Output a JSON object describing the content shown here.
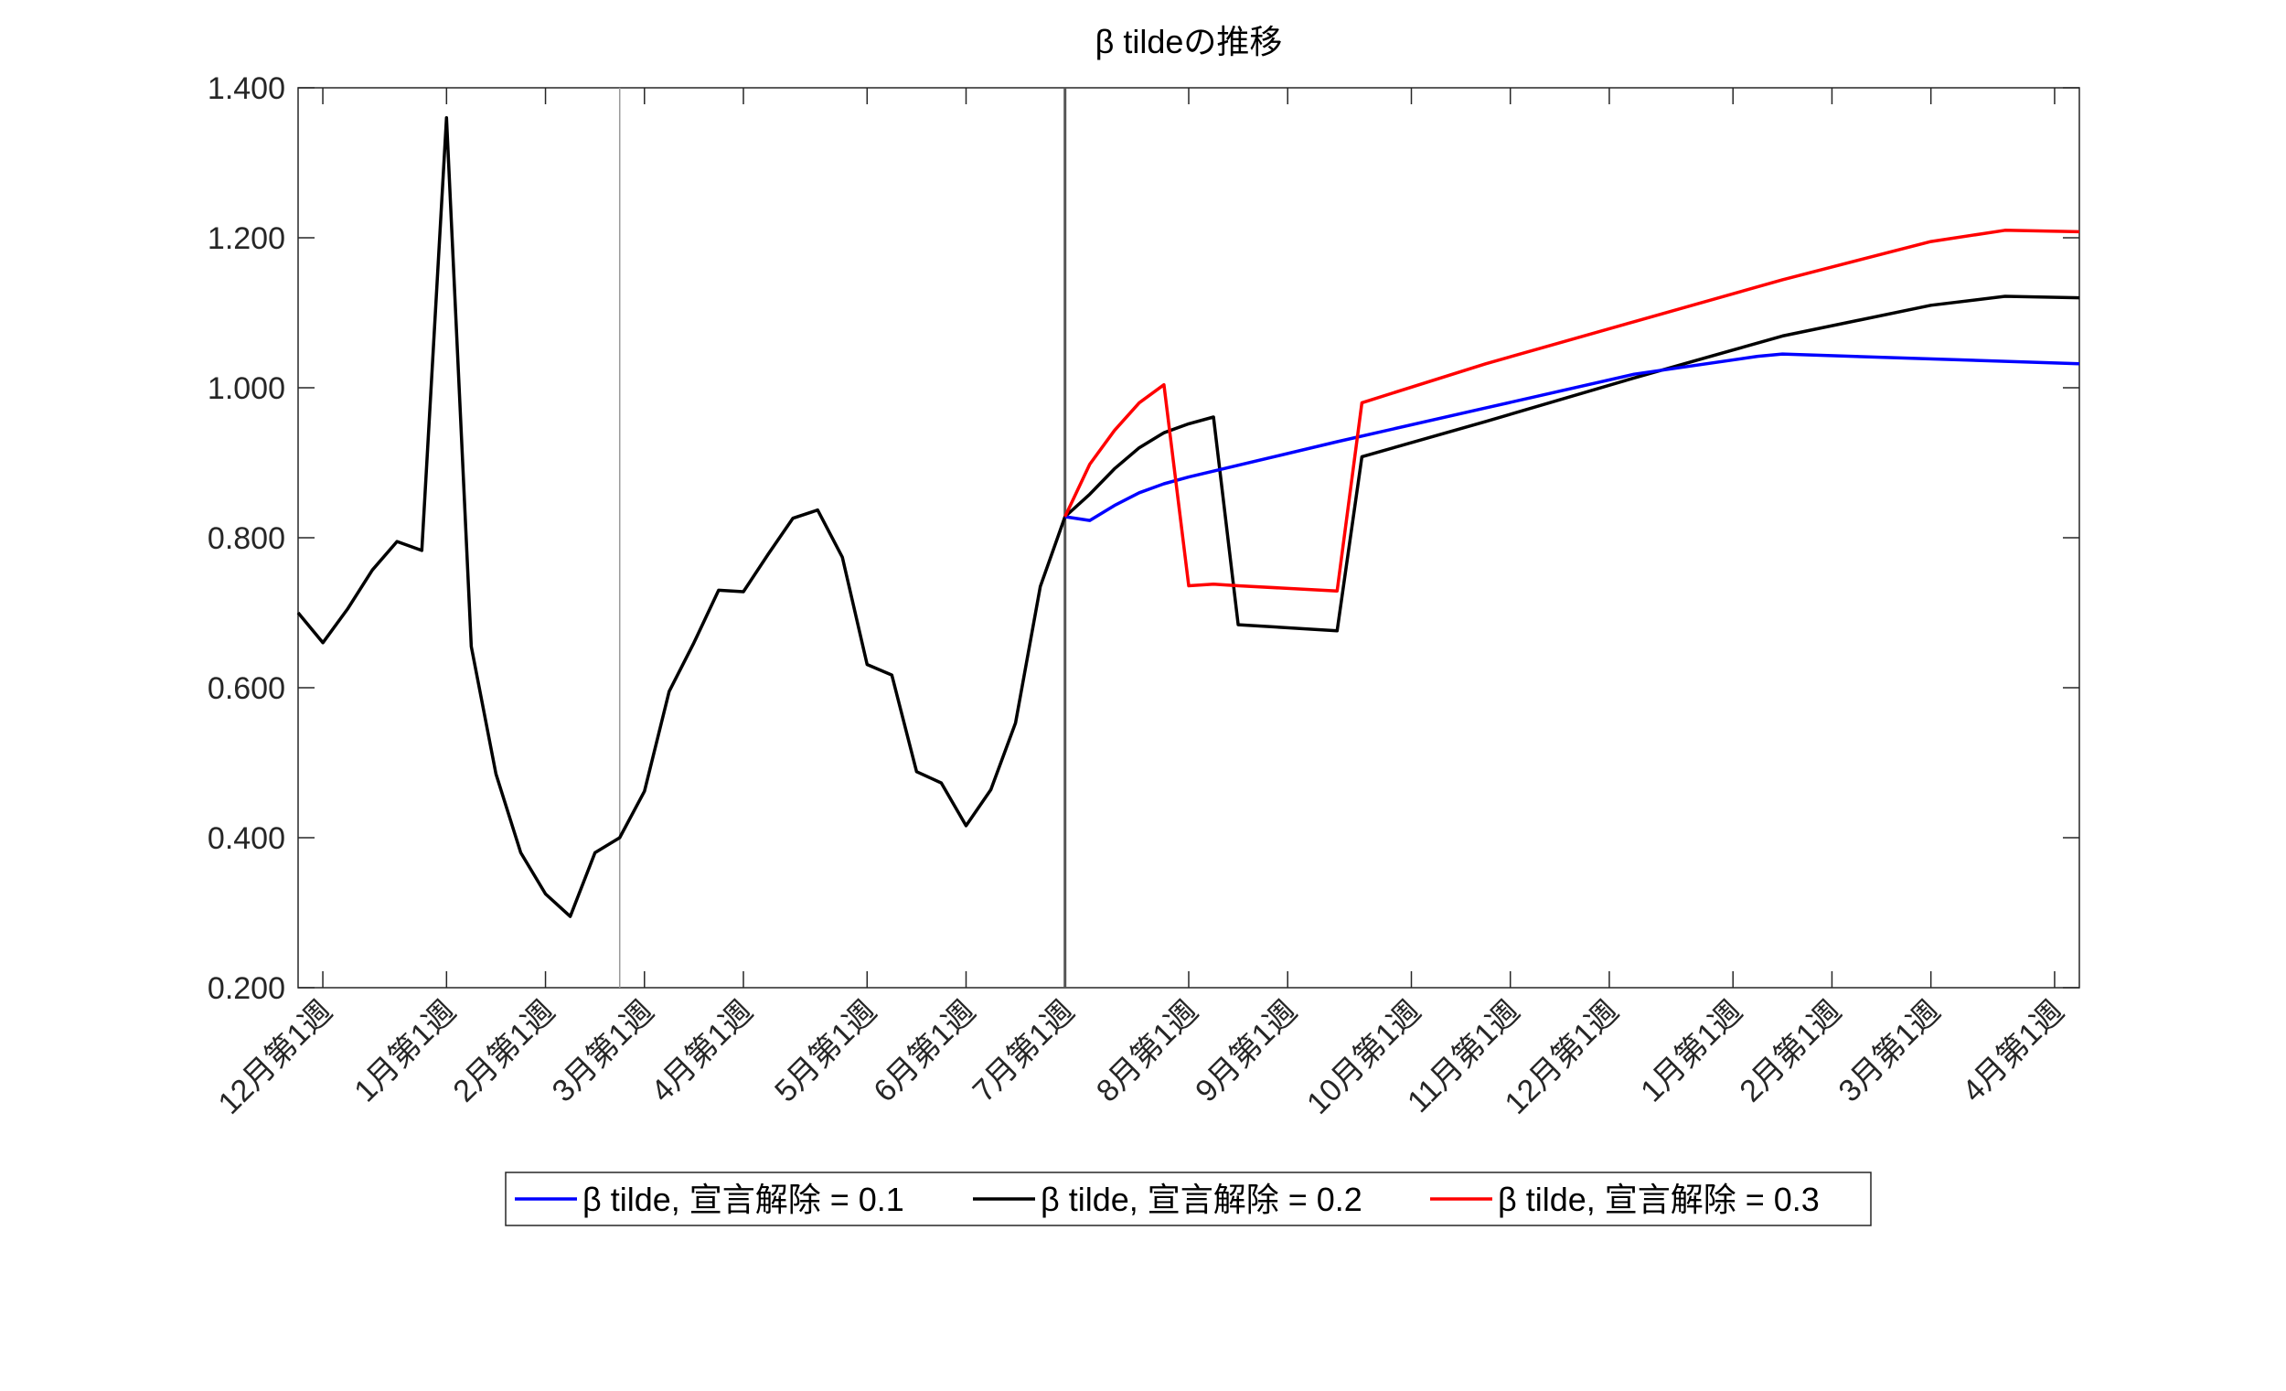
{
  "chart_data": {
    "type": "line",
    "title": "β tildeの推移",
    "xlabel": "",
    "ylabel": "",
    "ylim": [
      0.2,
      1.4
    ],
    "yticks": [
      0.2,
      0.4,
      0.6,
      0.8,
      1.0,
      1.2,
      1.4
    ],
    "ytick_labels": [
      "0.200",
      "0.400",
      "0.600",
      "0.800",
      "1.000",
      "1.200",
      "1.400"
    ],
    "xlim": [
      0,
      72
    ],
    "xticks": [
      1,
      6,
      10,
      14,
      18,
      23,
      27,
      31,
      36,
      40,
      45,
      49,
      53,
      58,
      62,
      66,
      71
    ],
    "xtick_labels": [
      "12月第1週",
      "1月第1週",
      "2月第1週",
      "3月第1週",
      "4月第1週",
      "5月第1週",
      "6月第1週",
      "7月第1週",
      "8月第1週",
      "9月第1週",
      "10月第1週",
      "11月第1週",
      "12月第1週",
      "1月第1週",
      "2月第1週",
      "3月第1週",
      "4月第1週"
    ],
    "vlines": [
      {
        "x": 13,
        "color": "#9a9a9a"
      },
      {
        "x": 31,
        "color": "#555555"
      }
    ],
    "grid": false,
    "legend_position": "bottom",
    "series": [
      {
        "name": "β tilde, 宣言解除 = 0.1",
        "color": "#0000ff",
        "x": [
          31,
          32,
          33,
          34,
          35,
          36,
          42,
          48,
          54,
          59,
          60,
          72
        ],
        "y": [
          0.828,
          0.823,
          0.843,
          0.86,
          0.872,
          0.881,
          0.928,
          0.973,
          1.018,
          1.042,
          1.045,
          1.032
        ]
      },
      {
        "name": "β tilde, 宣言解除 = 0.2",
        "color": "#000000",
        "x": [
          0,
          1,
          2,
          3,
          4,
          5,
          6,
          7,
          8,
          9,
          10,
          11,
          12,
          13,
          14,
          15,
          16,
          17,
          18,
          19,
          20,
          21,
          22,
          23,
          24,
          25,
          26,
          27,
          28,
          29,
          30,
          31,
          32,
          33,
          34,
          35,
          36,
          37,
          38,
          42,
          43,
          48,
          54,
          60,
          66,
          69,
          72
        ],
        "y": [
          0.7,
          0.66,
          0.705,
          0.757,
          0.795,
          0.783,
          1.36,
          0.655,
          0.485,
          0.38,
          0.325,
          0.295,
          0.38,
          0.4,
          0.462,
          0.595,
          0.66,
          0.73,
          0.728,
          0.778,
          0.826,
          0.837,
          0.774,
          0.631,
          0.617,
          0.488,
          0.473,
          0.416,
          0.464,
          0.553,
          0.735,
          0.828,
          0.858,
          0.892,
          0.92,
          0.94,
          0.952,
          0.961,
          0.684,
          0.676,
          0.908,
          0.955,
          1.013,
          1.069,
          1.11,
          1.122,
          1.12
        ]
      },
      {
        "name": "β tilde, 宣言解除 = 0.3",
        "color": "#ff0000",
        "x": [
          31,
          32,
          33,
          34,
          35,
          36,
          37,
          38,
          42,
          43,
          48,
          54,
          60,
          66,
          69,
          72
        ],
        "y": [
          0.828,
          0.898,
          0.943,
          0.98,
          1.004,
          0.736,
          0.738,
          0.736,
          0.729,
          0.98,
          1.032,
          1.088,
          1.144,
          1.195,
          1.21,
          1.208
        ]
      }
    ]
  }
}
